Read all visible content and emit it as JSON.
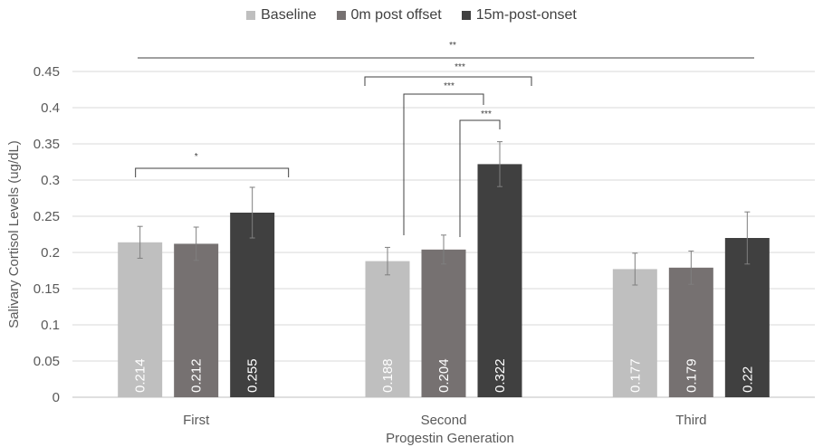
{
  "chart_data": {
    "type": "bar",
    "xlabel": "Progestin Generation",
    "ylabel": "Salivary Cortisol Levels (ug/dL)",
    "ylim": [
      0,
      0.45
    ],
    "yticks": [
      "0",
      "0.05",
      "0.1",
      "0.15",
      "0.2",
      "0.25",
      "0.3",
      "0.35",
      "0.4",
      "0.45"
    ],
    "categories": [
      "First",
      "Second",
      "Third"
    ],
    "legend_position": "top",
    "grid": true,
    "series": [
      {
        "name": "Baseline",
        "color": "#bfbfbf",
        "values": [
          0.214,
          0.188,
          0.177
        ],
        "labels": [
          "0.214",
          "0.188",
          "0.177"
        ],
        "err": [
          0.022,
          0.019,
          0.022
        ]
      },
      {
        "name": "0m post offset",
        "color": "#767171",
        "values": [
          0.212,
          0.204,
          0.179
        ],
        "labels": [
          "0.212",
          "0.204",
          "0.179"
        ],
        "err": [
          0.023,
          0.02,
          0.023
        ]
      },
      {
        "name": "15m-post-onset",
        "color": "#404040",
        "values": [
          0.255,
          0.322,
          0.22
        ],
        "labels": [
          "0.255",
          "0.322",
          "0.22"
        ],
        "err": [
          0.035,
          0.031,
          0.036
        ]
      }
    ],
    "significance": [
      {
        "label": "*",
        "from": [
          0,
          0
        ],
        "to": [
          0,
          2
        ]
      },
      {
        "label": "**",
        "from": [
          0,
          0
        ],
        "to": [
          2,
          2
        ]
      },
      {
        "label": "***",
        "from": [
          1,
          0
        ],
        "to": [
          1,
          2
        ]
      },
      {
        "label": "***",
        "from": [
          1,
          0
        ],
        "to": [
          1,
          2
        ]
      },
      {
        "label": "***",
        "from": [
          1,
          1
        ],
        "to": [
          1,
          2
        ]
      }
    ]
  }
}
